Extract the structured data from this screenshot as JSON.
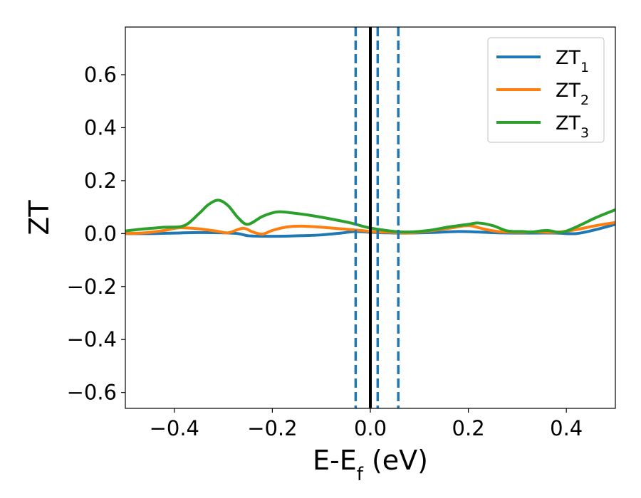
{
  "chart_data": {
    "type": "line",
    "xlabel": {
      "main": "E-E",
      "sub": "f",
      "rest": " (eV)"
    },
    "ylabel": "ZT",
    "xlim": [
      -0.5,
      0.5
    ],
    "ylim": [
      -0.66,
      0.78
    ],
    "xticks": [
      -0.4,
      -0.2,
      0.0,
      0.2,
      0.4
    ],
    "xtick_labels": [
      "−0.4",
      "−0.2",
      "0.0",
      "0.2",
      "0.4"
    ],
    "yticks": [
      -0.6,
      -0.4,
      -0.2,
      0.0,
      0.2,
      0.4,
      0.6
    ],
    "ytick_labels": [
      "−0.6",
      "−0.4",
      "−0.2",
      "0.0",
      "0.2",
      "0.4",
      "0.6"
    ],
    "grid": false,
    "legend": "top-right",
    "vlines": [
      {
        "x": 0.0,
        "style": "solid",
        "color": "#000000"
      },
      {
        "x": -0.03,
        "style": "dashed",
        "color": "#1f77b4"
      },
      {
        "x": 0.015,
        "style": "dashed",
        "color": "#1f77b4"
      },
      {
        "x": 0.057,
        "style": "dashed",
        "color": "#1f77b4"
      }
    ],
    "series": [
      {
        "name": {
          "main": "ZT",
          "sub": "1"
        },
        "color": "#1f77b4",
        "x": [
          -0.5,
          -0.45,
          -0.4,
          -0.35,
          -0.3,
          -0.27,
          -0.25,
          -0.22,
          -0.18,
          -0.14,
          -0.1,
          -0.06,
          -0.03,
          0.0,
          0.03,
          0.06,
          0.1,
          0.14,
          0.18,
          0.22,
          0.26,
          0.3,
          0.34,
          0.38,
          0.42,
          0.46,
          0.5
        ],
        "y": [
          0.0,
          0.0,
          0.002,
          0.004,
          0.003,
          0.0,
          -0.008,
          -0.01,
          -0.01,
          -0.008,
          -0.005,
          0.002,
          0.008,
          0.005,
          0.003,
          0.002,
          0.003,
          0.005,
          0.008,
          0.006,
          0.003,
          0.002,
          0.002,
          0.002,
          0.0,
          0.015,
          0.035
        ]
      },
      {
        "name": {
          "main": "ZT",
          "sub": "2"
        },
        "color": "#ff7f0e",
        "x": [
          -0.5,
          -0.46,
          -0.42,
          -0.39,
          -0.35,
          -0.31,
          -0.29,
          -0.26,
          -0.24,
          -0.22,
          -0.2,
          -0.17,
          -0.14,
          -0.1,
          -0.06,
          -0.02,
          0.0,
          0.04,
          0.08,
          0.12,
          0.16,
          0.2,
          0.23,
          0.26,
          0.3,
          0.34,
          0.38,
          0.42,
          0.46,
          0.5
        ],
        "y": [
          0.0,
          0.003,
          0.012,
          0.022,
          0.018,
          0.008,
          0.003,
          0.02,
          0.006,
          -0.002,
          0.012,
          0.025,
          0.028,
          0.024,
          0.018,
          0.012,
          0.008,
          0.005,
          0.003,
          0.01,
          0.02,
          0.03,
          0.018,
          0.008,
          0.005,
          0.006,
          0.005,
          0.015,
          0.03,
          0.042
        ]
      },
      {
        "name": {
          "main": "ZT",
          "sub": "3"
        },
        "color": "#2ca02c",
        "x": [
          -0.5,
          -0.46,
          -0.42,
          -0.38,
          -0.35,
          -0.33,
          -0.31,
          -0.29,
          -0.27,
          -0.25,
          -0.22,
          -0.19,
          -0.16,
          -0.12,
          -0.08,
          -0.04,
          -0.01,
          0.02,
          0.05,
          0.08,
          0.12,
          0.16,
          0.2,
          0.22,
          0.25,
          0.28,
          0.31,
          0.33,
          0.36,
          0.39,
          0.42,
          0.46,
          0.5
        ],
        "y": [
          0.01,
          0.018,
          0.024,
          0.03,
          0.075,
          0.11,
          0.126,
          0.105,
          0.06,
          0.035,
          0.065,
          0.082,
          0.078,
          0.068,
          0.055,
          0.04,
          0.025,
          0.015,
          0.008,
          0.006,
          0.012,
          0.025,
          0.035,
          0.04,
          0.03,
          0.01,
          0.008,
          0.006,
          0.012,
          0.005,
          0.025,
          0.06,
          0.09
        ]
      }
    ]
  }
}
